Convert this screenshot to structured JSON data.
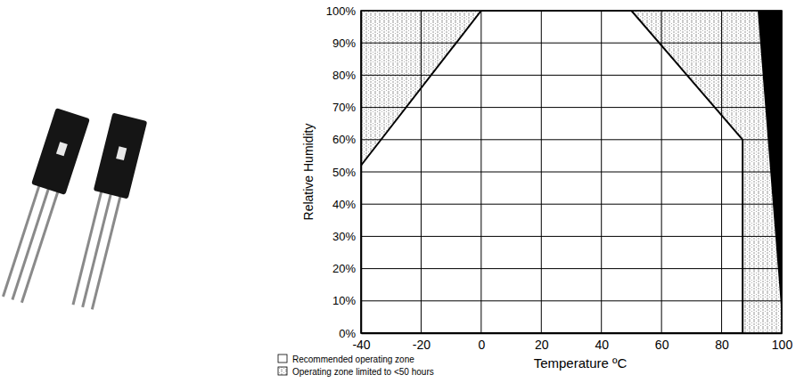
{
  "chart_data": {
    "type": "area",
    "x_label": "Temperature ºC",
    "y_label": "Relative Humidity",
    "xlim": [
      -40,
      100
    ],
    "xticks": [
      -40,
      -20,
      0,
      20,
      40,
      60,
      80,
      100
    ],
    "ylim": [
      0,
      100
    ],
    "yticks": [
      {
        "value": 0,
        "label": "0%"
      },
      {
        "value": 10,
        "label": "10%"
      },
      {
        "value": 20,
        "label": "20%"
      },
      {
        "value": 30,
        "label": "30%"
      },
      {
        "value": 40,
        "label": "40%"
      },
      {
        "value": 50,
        "label": "50%"
      },
      {
        "value": 60,
        "label": "60%"
      },
      {
        "value": 70,
        "label": "70%"
      },
      {
        "value": 80,
        "label": "80%"
      },
      {
        "value": 90,
        "label": "90%"
      },
      {
        "value": 100,
        "label": "100%"
      }
    ],
    "grid": true,
    "legend": "bottom",
    "series": [
      {
        "name": "Recommended operating zone",
        "type": "area",
        "color": "#ffffff",
        "x": [
          -40,
          0,
          50,
          87,
          87,
          -40
        ],
        "values": [
          52,
          100,
          100,
          60,
          0,
          0
        ]
      },
      {
        "name": "Operating zone limited to <50 hours",
        "type": "area",
        "color": "#9a9a9a",
        "line_style": "dotted",
        "x": [
          -40,
          0,
          -40,
          null,
          50,
          92,
          100,
          100,
          87,
          87
        ],
        "values": [
          52,
          100,
          100,
          null,
          100,
          100,
          5,
          0,
          0,
          60
        ]
      },
      {
        "type": "area",
        "color": "#000000",
        "x": [
          92,
          100,
          100
        ],
        "values": [
          100,
          100,
          5
        ]
      }
    ]
  }
}
